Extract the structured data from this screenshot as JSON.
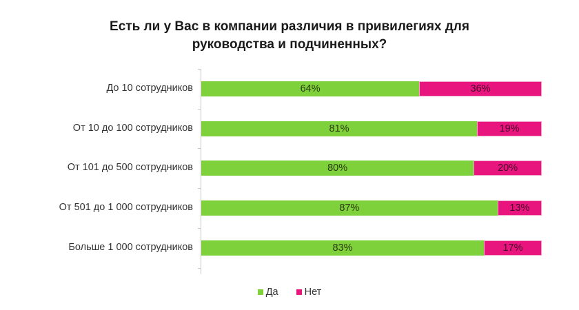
{
  "chart_data": {
    "type": "bar",
    "orientation": "horizontal",
    "stacked": true,
    "percent_stacked": true,
    "title": "Есть ли у Вас в компании различия в привилегиях для руководства и подчиненных?",
    "title_lines": [
      "Есть ли у Вас в компании различия в привилегиях для",
      "руководства и подчиненных?"
    ],
    "categories": [
      "До 10 сотрудников",
      "От 10 до 100 сотрудников",
      "От 101 до 500 сотрудников",
      "От 501 до 1 000 сотрудников",
      "Больше 1 000 сотрудников"
    ],
    "series": [
      {
        "name": "Да",
        "color": "#7ed13a",
        "values": [
          64,
          81,
          80,
          87,
          83
        ],
        "labels": [
          "64%",
          "81%",
          "80%",
          "87%",
          "83%"
        ]
      },
      {
        "name": "Нет",
        "color": "#e8157e",
        "values": [
          36,
          19,
          20,
          13,
          17
        ],
        "labels": [
          "36%",
          "19%",
          "20%",
          "13%",
          "17%"
        ]
      }
    ],
    "xlabel": "",
    "ylabel": "",
    "xlim": [
      0,
      100
    ],
    "grid": false,
    "legend_position": "bottom"
  },
  "legend": [
    {
      "label": "Да",
      "color": "#7ed13a"
    },
    {
      "label": "Нет",
      "color": "#e8157e"
    }
  ]
}
